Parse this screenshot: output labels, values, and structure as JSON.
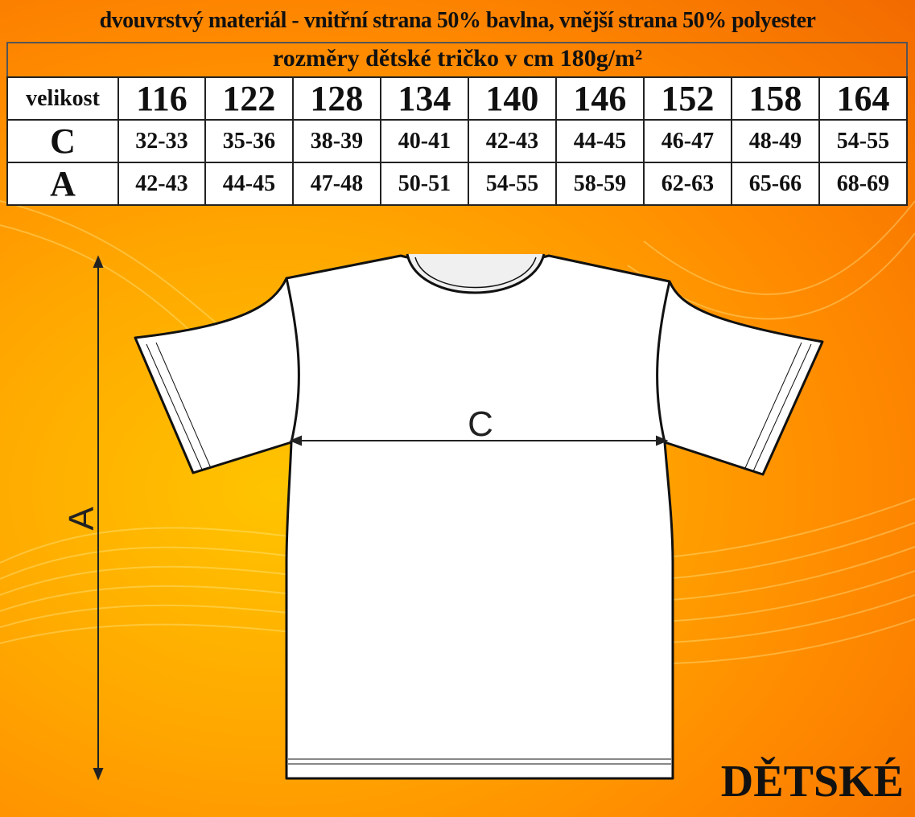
{
  "header": {
    "material": "dvouvrstvý materiál - vnitřní strana 50% bavlna, vnější strana 50% polyester",
    "subtitle": "rozměry dětské tričko v cm    180g/m²"
  },
  "table": {
    "size_label": "velikost",
    "sizes": [
      "116",
      "122",
      "128",
      "134",
      "140",
      "146",
      "152",
      "158",
      "164"
    ],
    "rows": [
      {
        "label": "C",
        "values": [
          "32-33",
          "35-36",
          "38-39",
          "40-41",
          "42-43",
          "44-45",
          "46-47",
          "48-49",
          "54-55"
        ]
      },
      {
        "label": "A",
        "values": [
          "42-43",
          "44-45",
          "47-48",
          "50-51",
          "54-55",
          "58-59",
          "62-63",
          "65-66",
          "68-69"
        ]
      }
    ]
  },
  "diagram": {
    "width_label": "C",
    "length_label": "A"
  },
  "footer": {
    "category": "DĚTSKÉ"
  },
  "colors": {
    "background": "#ff9a00",
    "shirt": "#ffffff",
    "outline": "#111111"
  }
}
